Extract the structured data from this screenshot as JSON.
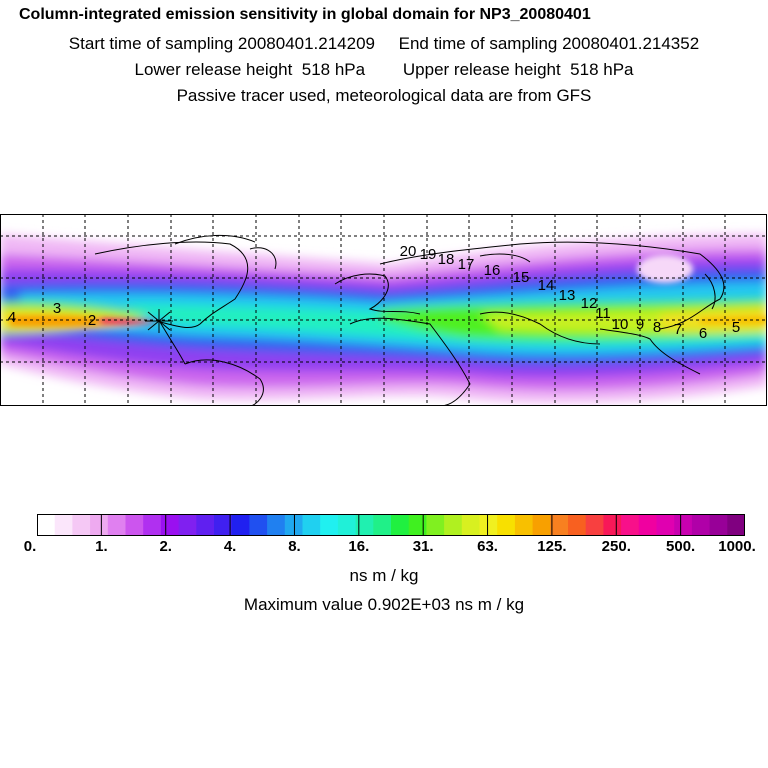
{
  "header": {
    "title": "Column-integrated emission sensitivity in global domain for NP3_20080401",
    "sampling": "Start time of sampling 20080401.214209     End time of sampling 20080401.214352",
    "release": "Lower release height  518 hPa        Upper release height  518 hPa",
    "note": "Passive tracer used, meteorological data are from GFS"
  },
  "map": {
    "track_labels": [
      "4",
      "3",
      "2",
      "20",
      "19",
      "18",
      "17",
      "16",
      "15",
      "14",
      "13",
      "12",
      "11",
      "10",
      "9",
      "8",
      "7",
      "6",
      "5"
    ]
  },
  "colorbar": {
    "tick_labels": [
      "0.",
      "1.",
      "2.",
      "4.",
      "8.",
      "16.",
      "31.",
      "63.",
      "125.",
      "250.",
      "500.",
      "1000."
    ],
    "colors": [
      "#ffffff",
      "#fbe6fb",
      "#f5c8f5",
      "#eeaaf0",
      "#e080f0",
      "#cc55ee",
      "#b030f0",
      "#9a10f0",
      "#8020f0",
      "#6020f0",
      "#4020f0",
      "#2020f0",
      "#2050f0",
      "#2080f0",
      "#20a8f0",
      "#20d0f0",
      "#20f0f0",
      "#20f0d8",
      "#20f0b0",
      "#20f088",
      "#20f040",
      "#40f020",
      "#80f020",
      "#b0f020",
      "#d8f020",
      "#f0f020",
      "#f8e000",
      "#f8c000",
      "#f8a000",
      "#f88020",
      "#f86020",
      "#f84040",
      "#f81858",
      "#f8108a",
      "#f000a0",
      "#e000b0",
      "#c800b0",
      "#b000a8",
      "#980098",
      "#800080"
    ],
    "units": "ns m / kg",
    "maximum": "Maximum value  0.902E+03 ns m / kg"
  }
}
